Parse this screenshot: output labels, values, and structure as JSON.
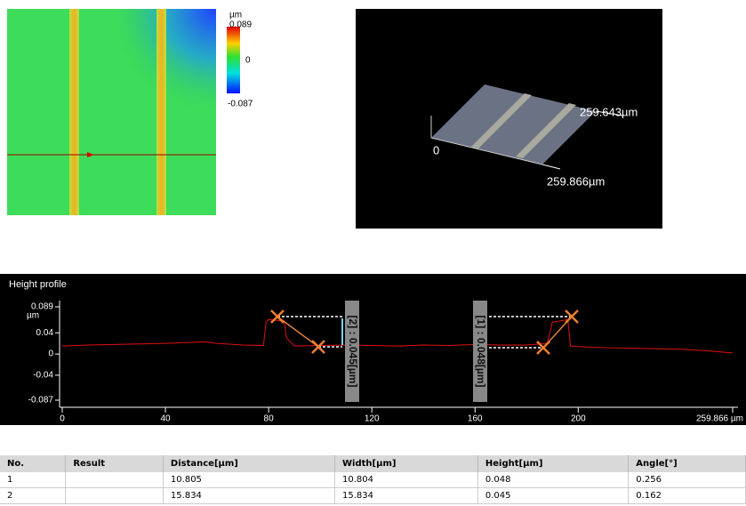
{
  "colorbar": {
    "unit": "µm",
    "max": 0.089,
    "mid": 0,
    "min": -0.087
  },
  "view3d": {
    "y_length": "259.643µm",
    "origin": 0,
    "x_length": "259.866µm"
  },
  "profile": {
    "title": "Height profile",
    "y_unit": "µm",
    "ylim": [
      -0.087,
      0.089
    ],
    "yticks": [
      0.089,
      0.04,
      0,
      -0.04,
      -0.087
    ],
    "xlim": [
      0,
      259.866
    ],
    "xticks": [
      0,
      40,
      80,
      120,
      160,
      200,
      {
        "value": 259.866,
        "label": "259.866 µm"
      }
    ],
    "x": [
      0,
      10,
      20,
      30,
      40,
      50,
      55,
      60,
      70,
      78,
      79,
      80,
      86,
      87,
      90,
      100,
      110,
      120,
      130,
      140,
      150,
      160,
      170,
      180,
      188,
      190,
      196,
      197,
      200,
      210,
      220,
      230,
      240,
      250,
      259.866
    ],
    "y": [
      0.015,
      0.017,
      0.018,
      0.019,
      0.02,
      0.022,
      0.023,
      0.02,
      0.017,
      0.016,
      0.06,
      0.065,
      0.062,
      0.03,
      0.015,
      0.016,
      0.017,
      0.016,
      0.015,
      0.017,
      0.016,
      0.018,
      0.017,
      0.017,
      0.02,
      0.06,
      0.065,
      0.015,
      0.014,
      0.012,
      0.011,
      0.01,
      0.009,
      0.006,
      0.002
    ],
    "annotations": [
      "[2] : 0.045[µm]",
      "[1] : 0.048[µm]"
    ]
  },
  "table": {
    "columns": [
      "No.",
      "Result",
      "Distance[µm]",
      "Width[µm]",
      "Height[µm]",
      "Angle[°]"
    ],
    "rows": [
      {
        "no": 1,
        "distance": 10.805,
        "width": 10.804,
        "height": 0.048,
        "angle": 0.256
      },
      {
        "no": 2,
        "distance": 15.834,
        "width": 15.834,
        "height": 0.045,
        "angle": 0.162
      }
    ]
  }
}
